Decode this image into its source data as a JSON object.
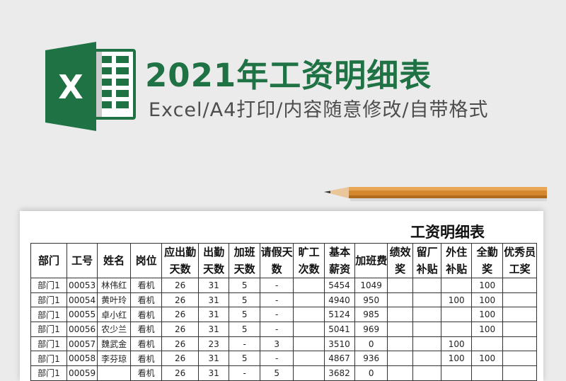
{
  "banner": {
    "title": "2021年工资明细表",
    "subtitle": "Excel/A4打印/内容随意修改/自带格式",
    "accent": "#1f7244",
    "logo_letter": "X"
  },
  "sheet": {
    "title": "工资明细表",
    "headers": [
      "部门",
      "工号",
      "姓名",
      "岗位",
      "应出勤天数",
      "出勤天数",
      "加班天数",
      "请假天数",
      "旷工次数",
      "基本薪资",
      "加班费",
      "绩效奖",
      "留厂补贴",
      "外住补贴",
      "全勤奖",
      "优秀员工奖"
    ],
    "rows": [
      [
        "部门1",
        "00053",
        "林伟红",
        "看机",
        "26",
        "31",
        "5",
        "-",
        "",
        "5454",
        "1049",
        "",
        "",
        "",
        "100",
        ""
      ],
      [
        "部门1",
        "00054",
        "黄叶玲",
        "看机",
        "26",
        "31",
        "5",
        "-",
        "",
        "4940",
        "950",
        "",
        "",
        "100",
        "100",
        ""
      ],
      [
        "部门1",
        "00055",
        "卓小红",
        "看机",
        "26",
        "31",
        "5",
        "-",
        "",
        "5124",
        "985",
        "",
        "",
        "",
        "100",
        ""
      ],
      [
        "部门1",
        "00056",
        "农少兰",
        "看机",
        "26",
        "31",
        "5",
        "-",
        "",
        "5041",
        "969",
        "",
        "",
        "",
        "100",
        ""
      ],
      [
        "部门1",
        "00057",
        "魏武金",
        "看机",
        "26",
        "23",
        "-",
        "3",
        "",
        "3510",
        "0",
        "",
        "",
        "100",
        "",
        ""
      ],
      [
        "部门1",
        "00058",
        "李芬琼",
        "看机",
        "26",
        "31",
        "5",
        "-",
        "",
        "4867",
        "936",
        "",
        "",
        "100",
        "100",
        ""
      ],
      [
        "部门1",
        "00059",
        "",
        "看机",
        "26",
        "31",
        "-",
        "5",
        "",
        "3682",
        "0",
        "",
        "",
        "",
        "",
        ""
      ]
    ]
  }
}
